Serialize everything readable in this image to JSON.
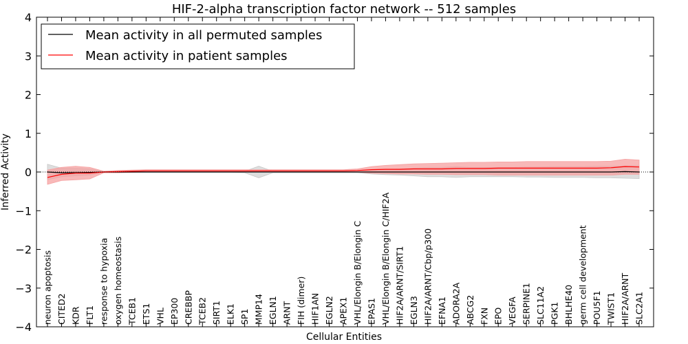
{
  "chart_data": {
    "type": "line",
    "title": "HIF-2-alpha transcription factor network -- 512 samples",
    "xlabel": "Cellular Entities",
    "ylabel": "Inferred Activity",
    "ylim": [
      -4,
      4
    ],
    "yticks": [
      -4,
      -3,
      -2,
      -1,
      0,
      1,
      2,
      3,
      4
    ],
    "ytick_labels": [
      "−4",
      "−3",
      "−2",
      "−1",
      "0",
      "1",
      "2",
      "3",
      "4"
    ],
    "legend_position": "top-left",
    "categories": [
      "neuron apoptosis",
      "CITED2",
      "KDR",
      "FLT1",
      "response to hypoxia",
      "oxygen homeostasis",
      "TCEB1",
      "ETS1",
      "VHL",
      "EP300",
      "CREBBP",
      "TCEB2",
      "SIRT1",
      "ELK1",
      "SP1",
      "MMP14",
      "EGLN1",
      "ARNT",
      "FIH (dimer)",
      "HIF1AN",
      "EGLN2",
      "APEX1",
      "VHL/Elongin B/Elongin C",
      "EPAS1",
      "VHL/Elongin B/Elongin C/HIF2A",
      "HIF2A/ARNT/SIRT1",
      "EGLN3",
      "HIF2A/ARNT/Cbp/p300",
      "EFNA1",
      "ADORA2A",
      "ABCG2",
      "FXN",
      "EPO",
      "VEGFA",
      "SERPINE1",
      "SLC11A2",
      "PGK1",
      "BHLHE40",
      "germ cell development",
      "POU5F1",
      "TWIST1",
      "HIF2A/ARNT",
      "SLC2A1"
    ],
    "series": [
      {
        "name": "Mean activity in all permuted samples",
        "color": "#000000",
        "band_color": "#c8c8c8",
        "values": [
          0.0,
          -0.02,
          -0.02,
          -0.01,
          0.0,
          0.0,
          0.0,
          0.0,
          0.0,
          0.0,
          0.0,
          0.0,
          0.0,
          0.0,
          0.0,
          0.0,
          0.0,
          0.0,
          0.0,
          0.0,
          0.0,
          0.0,
          0.0,
          0.0,
          0.0,
          0.0,
          0.0,
          0.0,
          0.0,
          0.0,
          0.0,
          0.0,
          0.0,
          0.0,
          0.0,
          0.0,
          0.0,
          0.0,
          0.0,
          0.0,
          0.0,
          0.01,
          0.0
        ],
        "lower": [
          -0.2,
          -0.12,
          -0.1,
          -0.08,
          -0.01,
          -0.01,
          -0.01,
          -0.01,
          -0.01,
          -0.01,
          -0.01,
          -0.01,
          -0.01,
          -0.01,
          -0.02,
          -0.15,
          -0.02,
          -0.02,
          -0.02,
          -0.02,
          -0.02,
          -0.02,
          -0.02,
          -0.05,
          -0.07,
          -0.08,
          -0.1,
          -0.12,
          -0.12,
          -0.14,
          -0.12,
          -0.12,
          -0.12,
          -0.12,
          -0.13,
          -0.13,
          -0.14,
          -0.14,
          -0.14,
          -0.15,
          -0.15,
          -0.16,
          -0.17
        ],
        "upper": [
          0.2,
          0.1,
          0.1,
          0.08,
          0.01,
          0.01,
          0.01,
          0.01,
          0.01,
          0.01,
          0.01,
          0.01,
          0.01,
          0.01,
          0.02,
          0.15,
          0.02,
          0.02,
          0.02,
          0.02,
          0.02,
          0.02,
          0.02,
          0.05,
          0.07,
          0.08,
          0.1,
          0.12,
          0.12,
          0.14,
          0.12,
          0.12,
          0.12,
          0.12,
          0.13,
          0.13,
          0.14,
          0.14,
          0.14,
          0.15,
          0.15,
          0.16,
          0.17
        ]
      },
      {
        "name": "Mean activity in patient samples",
        "color": "#ff0000",
        "band_color": "#f5a0a0",
        "values": [
          -0.14,
          -0.06,
          -0.03,
          -0.03,
          0.0,
          0.01,
          0.02,
          0.03,
          0.03,
          0.03,
          0.03,
          0.03,
          0.03,
          0.03,
          0.03,
          0.03,
          0.03,
          0.03,
          0.03,
          0.03,
          0.03,
          0.03,
          0.04,
          0.06,
          0.07,
          0.07,
          0.08,
          0.08,
          0.08,
          0.09,
          0.09,
          0.09,
          0.1,
          0.1,
          0.1,
          0.1,
          0.1,
          0.1,
          0.1,
          0.1,
          0.11,
          0.14,
          0.13
        ],
        "lower": [
          -0.32,
          -0.22,
          -0.2,
          -0.18,
          -0.02,
          -0.02,
          -0.01,
          0.0,
          0.0,
          0.0,
          0.0,
          0.0,
          0.0,
          0.0,
          0.0,
          0.0,
          0.0,
          0.0,
          0.0,
          0.0,
          0.0,
          0.0,
          0.0,
          -0.03,
          -0.04,
          -0.05,
          -0.05,
          -0.06,
          -0.06,
          -0.07,
          -0.07,
          -0.07,
          -0.08,
          -0.08,
          -0.08,
          -0.08,
          -0.08,
          -0.08,
          -0.08,
          -0.08,
          -0.08,
          -0.06,
          -0.06
        ],
        "upper": [
          0.05,
          0.12,
          0.15,
          0.12,
          0.02,
          0.04,
          0.05,
          0.06,
          0.06,
          0.06,
          0.06,
          0.06,
          0.06,
          0.06,
          0.06,
          0.06,
          0.06,
          0.06,
          0.06,
          0.06,
          0.06,
          0.06,
          0.08,
          0.14,
          0.17,
          0.19,
          0.21,
          0.22,
          0.23,
          0.24,
          0.25,
          0.25,
          0.26,
          0.26,
          0.27,
          0.27,
          0.27,
          0.27,
          0.27,
          0.27,
          0.28,
          0.33,
          0.31
        ]
      }
    ]
  }
}
